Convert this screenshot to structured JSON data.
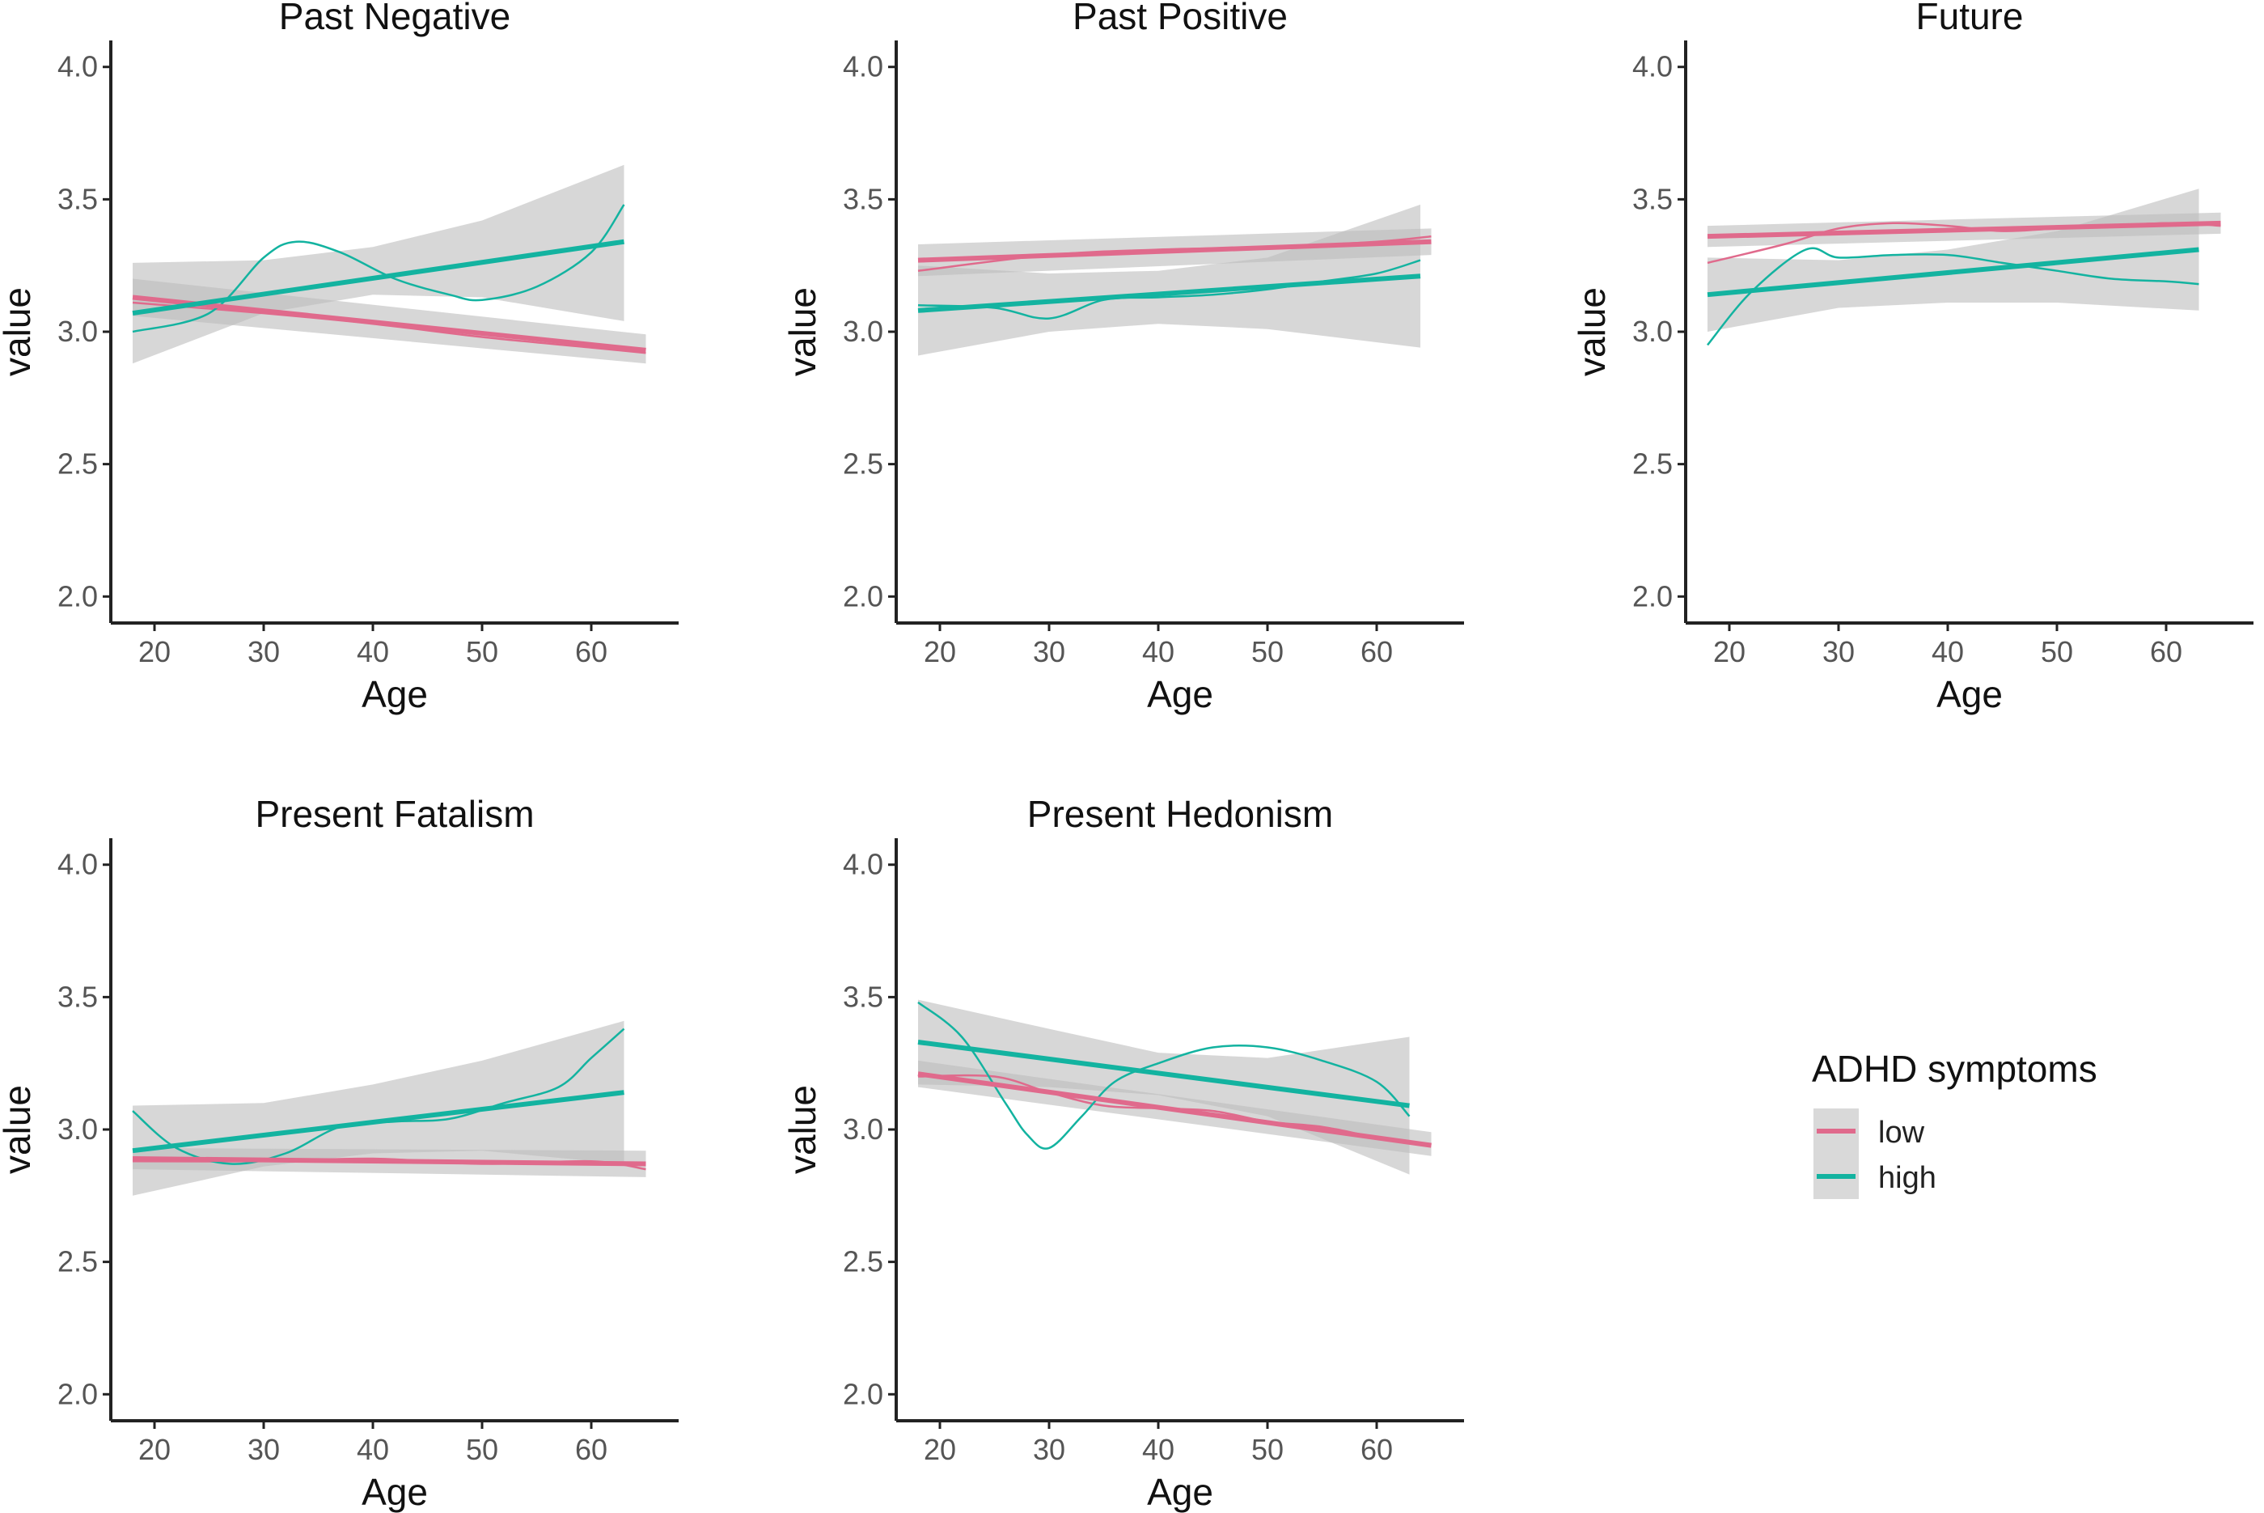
{
  "chart_data": [
    {
      "type": "line",
      "title": "Past Negative",
      "xlabel": "Age",
      "ylabel": "value",
      "xlim": [
        16,
        68
      ],
      "ylim": [
        1.9,
        4.1
      ],
      "xticks": [
        "20",
        "30",
        "40",
        "50",
        "60"
      ],
      "yticks": [
        "2.0",
        "2.5",
        "3.0",
        "3.5",
        "4.0"
      ],
      "series": [
        {
          "name": "low",
          "linear": {
            "x": [
              18,
              65
            ],
            "y": [
              3.13,
              2.93
            ]
          },
          "ci": {
            "x": [
              18,
              65
            ],
            "lower": [
              3.06,
              2.88
            ],
            "upper": [
              3.2,
              2.99
            ]
          },
          "loess": {
            "x": [
              18,
              30,
              40,
              50,
              60,
              65
            ],
            "y": [
              3.11,
              3.07,
              3.03,
              2.98,
              2.94,
              2.92
            ]
          }
        },
        {
          "name": "high",
          "linear": {
            "x": [
              18,
              63
            ],
            "y": [
              3.07,
              3.34
            ]
          },
          "ci": {
            "x": [
              18,
              30,
              40,
              50,
              63
            ],
            "lower": [
              2.88,
              3.07,
              3.14,
              3.13,
              3.04
            ],
            "upper": [
              3.26,
              3.27,
              3.32,
              3.42,
              3.63
            ]
          },
          "loess": {
            "x": [
              18,
              25,
              30,
              33,
              37,
              42,
              47,
              50,
              55,
              60,
              63
            ],
            "y": [
              3.0,
              3.07,
              3.28,
              3.34,
              3.3,
              3.2,
              3.14,
              3.12,
              3.17,
              3.3,
              3.48
            ]
          }
        }
      ]
    },
    {
      "type": "line",
      "title": "Past Positive",
      "xlabel": "Age",
      "ylabel": "value",
      "xlim": [
        16,
        68
      ],
      "ylim": [
        1.9,
        4.1
      ],
      "xticks": [
        "20",
        "30",
        "40",
        "50",
        "60"
      ],
      "yticks": [
        "2.0",
        "2.5",
        "3.0",
        "3.5",
        "4.0"
      ],
      "series": [
        {
          "name": "low",
          "linear": {
            "x": [
              18,
              65
            ],
            "y": [
              3.27,
              3.34
            ]
          },
          "ci": {
            "x": [
              18,
              65
            ],
            "lower": [
              3.21,
              3.29
            ],
            "upper": [
              3.33,
              3.39
            ]
          },
          "loess": {
            "x": [
              18,
              30,
              40,
              50,
              60,
              65
            ],
            "y": [
              3.23,
              3.29,
              3.31,
              3.32,
              3.34,
              3.36
            ]
          }
        },
        {
          "name": "high",
          "linear": {
            "x": [
              18,
              64
            ],
            "y": [
              3.08,
              3.21
            ]
          },
          "ci": {
            "x": [
              18,
              30,
              40,
              50,
              64
            ],
            "lower": [
              2.91,
              3.0,
              3.03,
              3.01,
              2.94
            ],
            "upper": [
              3.25,
              3.22,
              3.23,
              3.28,
              3.48
            ]
          },
          "loess": {
            "x": [
              18,
              25,
              30,
              35,
              40,
              45,
              50,
              55,
              60,
              64
            ],
            "y": [
              3.1,
              3.09,
              3.05,
              3.12,
              3.13,
              3.14,
              3.16,
              3.19,
              3.22,
              3.27
            ]
          }
        }
      ]
    },
    {
      "type": "line",
      "title": "Future",
      "xlabel": "Age",
      "ylabel": "value",
      "xlim": [
        16,
        68
      ],
      "ylim": [
        1.9,
        4.1
      ],
      "xticks": [
        "20",
        "30",
        "40",
        "50",
        "60"
      ],
      "yticks": [
        "2.0",
        "2.5",
        "3.0",
        "3.5",
        "4.0"
      ],
      "series": [
        {
          "name": "low",
          "linear": {
            "x": [
              18,
              65
            ],
            "y": [
              3.36,
              3.41
            ]
          },
          "ci": {
            "x": [
              18,
              65
            ],
            "lower": [
              3.32,
              3.37
            ],
            "upper": [
              3.4,
              3.45
            ]
          },
          "loess": {
            "x": [
              18,
              25,
              30,
              35,
              40,
              45,
              50,
              60,
              65
            ],
            "y": [
              3.26,
              3.33,
              3.39,
              3.41,
              3.4,
              3.38,
              3.39,
              3.41,
              3.4
            ]
          }
        },
        {
          "name": "high",
          "linear": {
            "x": [
              18,
              63
            ],
            "y": [
              3.14,
              3.31
            ]
          },
          "ci": {
            "x": [
              18,
              30,
              40,
              50,
              63
            ],
            "lower": [
              3.0,
              3.09,
              3.11,
              3.11,
              3.08
            ],
            "upper": [
              3.28,
              3.27,
              3.31,
              3.38,
              3.54
            ]
          },
          "loess": {
            "x": [
              18,
              22,
              27,
              30,
              35,
              40,
              45,
              50,
              55,
              60,
              63
            ],
            "y": [
              2.95,
              3.15,
              3.31,
              3.28,
              3.29,
              3.29,
              3.26,
              3.23,
              3.2,
              3.19,
              3.18
            ]
          }
        }
      ]
    },
    {
      "type": "line",
      "title": "Present Fatalism",
      "xlabel": "Age",
      "ylabel": "value",
      "xlim": [
        16,
        68
      ],
      "ylim": [
        1.9,
        4.1
      ],
      "xticks": [
        "20",
        "30",
        "40",
        "50",
        "60"
      ],
      "yticks": [
        "2.0",
        "2.5",
        "3.0",
        "3.5",
        "4.0"
      ],
      "series": [
        {
          "name": "low",
          "linear": {
            "x": [
              18,
              65
            ],
            "y": [
              2.89,
              2.87
            ]
          },
          "ci": {
            "x": [
              18,
              65
            ],
            "lower": [
              2.85,
              2.82
            ],
            "upper": [
              2.93,
              2.92
            ]
          },
          "loess": {
            "x": [
              18,
              30,
              40,
              50,
              60,
              65
            ],
            "y": [
              2.88,
              2.88,
              2.89,
              2.87,
              2.88,
              2.85
            ]
          }
        },
        {
          "name": "high",
          "linear": {
            "x": [
              18,
              63
            ],
            "y": [
              2.92,
              3.14
            ]
          },
          "ci": {
            "x": [
              18,
              30,
              40,
              50,
              63
            ],
            "lower": [
              2.75,
              2.86,
              2.91,
              2.92,
              2.87
            ],
            "upper": [
              3.09,
              3.1,
              3.17,
              3.26,
              3.41
            ]
          },
          "loess": {
            "x": [
              18,
              22,
              27,
              32,
              37,
              42,
              47,
              52,
              57,
              60,
              63
            ],
            "y": [
              3.07,
              2.93,
              2.87,
              2.91,
              3.01,
              3.03,
              3.04,
              3.1,
              3.16,
              3.27,
              3.38
            ]
          }
        }
      ]
    },
    {
      "type": "line",
      "title": "Present Hedonism",
      "xlabel": "Age",
      "ylabel": "value",
      "xlim": [
        16,
        68
      ],
      "ylim": [
        1.9,
        4.1
      ],
      "xticks": [
        "20",
        "30",
        "40",
        "50",
        "60"
      ],
      "yticks": [
        "2.0",
        "2.5",
        "3.0",
        "3.5",
        "4.0"
      ],
      "series": [
        {
          "name": "low",
          "linear": {
            "x": [
              18,
              65
            ],
            "y": [
              3.21,
              2.94
            ]
          },
          "ci": {
            "x": [
              18,
              65
            ],
            "lower": [
              3.16,
              2.9
            ],
            "upper": [
              3.26,
              2.99
            ]
          },
          "loess": {
            "x": [
              18,
              25,
              30,
              35,
              40,
              45,
              50,
              55,
              60,
              65
            ],
            "y": [
              3.2,
              3.2,
              3.14,
              3.09,
              3.08,
              3.07,
              3.03,
              3.01,
              2.97,
              2.94
            ]
          }
        },
        {
          "name": "high",
          "linear": {
            "x": [
              18,
              63
            ],
            "y": [
              3.33,
              3.09
            ]
          },
          "ci": {
            "x": [
              18,
              30,
              40,
              50,
              63
            ],
            "lower": [
              3.17,
              3.16,
              3.13,
              3.05,
              2.83
            ],
            "upper": [
              3.49,
              3.38,
              3.29,
              3.27,
              3.35
            ]
          },
          "loess": {
            "x": [
              18,
              22,
              26,
              28,
              30,
              33,
              36,
              40,
              45,
              50,
              55,
              60,
              63
            ],
            "y": [
              3.48,
              3.35,
              3.1,
              2.98,
              2.93,
              3.05,
              3.18,
              3.25,
              3.31,
              3.31,
              3.26,
              3.18,
              3.05
            ]
          }
        }
      ]
    }
  ],
  "legend": {
    "title": "ADHD symptoms",
    "items": [
      {
        "label": "low",
        "color": "#e06a8c"
      },
      {
        "label": "high",
        "color": "#13b3a0"
      }
    ]
  },
  "colors": {
    "low": "#e06a8c",
    "high": "#13b3a0",
    "ci": "#bdbdbd"
  }
}
